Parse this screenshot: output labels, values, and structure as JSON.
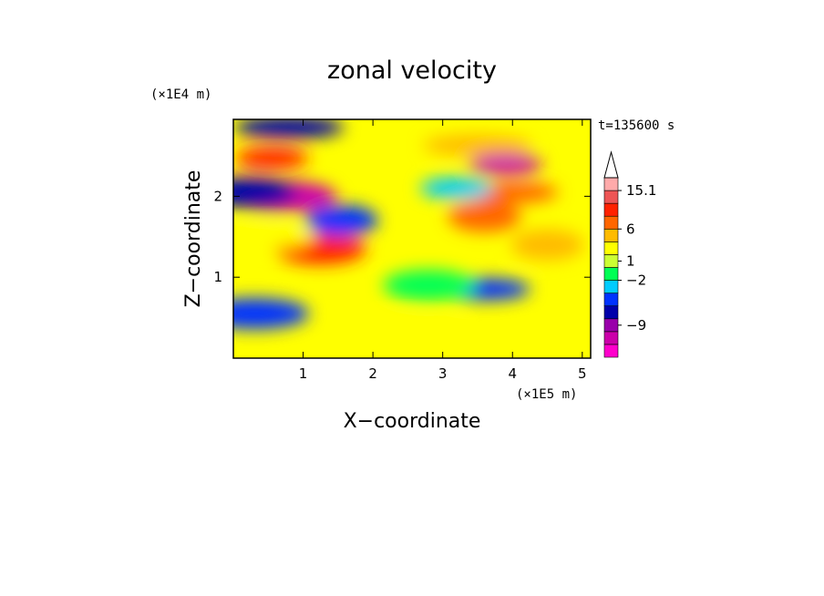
{
  "chart_data": {
    "type": "heatmap",
    "title": "zonal velocity",
    "xlabel": "X−coordinate",
    "ylabel": "Z−coordinate",
    "x_scale_note": "(×1E5 m)",
    "y_scale_note": "(×1E4 m)",
    "time_label": "t=135600 s",
    "xlim": [
      0,
      5.12
    ],
    "ylim": [
      0,
      2.95
    ],
    "x_ticks": [
      {
        "value": 1,
        "label": "1"
      },
      {
        "value": 2,
        "label": "2"
      },
      {
        "value": 3,
        "label": "3"
      },
      {
        "value": 4,
        "label": "4"
      },
      {
        "value": 5,
        "label": "5"
      }
    ],
    "y_ticks": [
      {
        "value": 1,
        "label": "1"
      },
      {
        "value": 2,
        "label": "2"
      }
    ],
    "colorbar": {
      "colors": [
        "#ff00cc",
        "#cc00aa",
        "#9900aa",
        "#0000aa",
        "#0033ff",
        "#00ccff",
        "#00ff55",
        "#ccff33",
        "#ffff00",
        "#ffbb00",
        "#ff6600",
        "#ff2200",
        "#ee5555",
        "#ffaaaa"
      ],
      "labels": [
        {
          "slot": 2.5,
          "text": "−9"
        },
        {
          "slot": 6,
          "text": "−2"
        },
        {
          "slot": 7.5,
          "text": "1"
        },
        {
          "slot": 10,
          "text": "6"
        },
        {
          "slot": 13,
          "text": "15.1"
        }
      ],
      "extend_max": true
    },
    "field_features": [
      {
        "x": 0.55,
        "z": 2.47,
        "value": 8
      },
      {
        "x": 1.25,
        "z": 1.35,
        "value": 8
      },
      {
        "x": 3.5,
        "z": 2.63,
        "value": 5
      },
      {
        "x": 3.6,
        "z": 1.75,
        "value": 6
      },
      {
        "x": 4.0,
        "z": 2.05,
        "value": 7
      },
      {
        "x": 0.7,
        "z": 2.0,
        "value": -9
      },
      {
        "x": 3.9,
        "z": 2.4,
        "value": -9
      },
      {
        "x": 0.25,
        "z": 2.05,
        "value": -6
      },
      {
        "x": 0.8,
        "z": 2.85,
        "value": -6
      },
      {
        "x": 1.55,
        "z": 1.7,
        "value": -4
      },
      {
        "x": 3.6,
        "z": 0.85,
        "value": -4
      },
      {
        "x": 0.3,
        "z": 0.55,
        "value": -3
      },
      {
        "x": 3.2,
        "z": 2.1,
        "value": -2
      },
      {
        "x": 2.8,
        "z": 0.9,
        "value": 0
      },
      {
        "x": 2.5,
        "z": 0.35,
        "value": 3
      },
      {
        "x": 4.5,
        "z": 1.4,
        "value": 4
      },
      {
        "x": 0.5,
        "z": 1.5,
        "value": 3
      }
    ]
  }
}
